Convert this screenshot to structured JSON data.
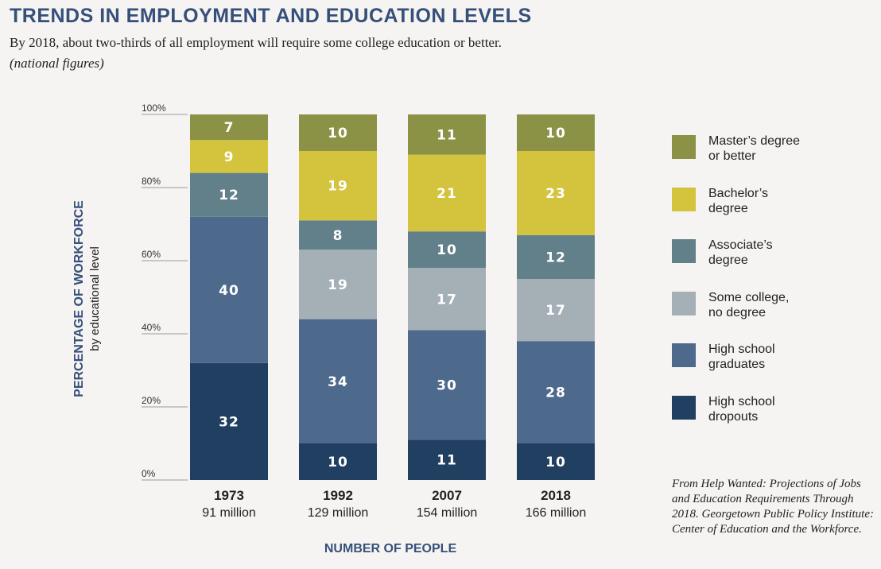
{
  "title": "TRENDS IN EMPLOYMENT AND EDUCATION LEVELS",
  "subtitle": "By 2018, about two-thirds of all employment will require some college education or better.",
  "note": "(national figures)",
  "source": "From Help Wanted: Projections of Jobs and Education Requirements Through 2018. Georgetown Public Policy Institute: Center of Education and the Workforce.",
  "colors": {
    "masters": "#8c9245",
    "bachelors": "#d4c33c",
    "associates": "#62808a",
    "some_college": "#a4b0b6",
    "hs_grad": "#4d6a8d",
    "dropouts": "#213f60",
    "axis_title": "#35507a"
  },
  "chart_data": {
    "type": "bar",
    "stacked": true,
    "title": "TRENDS IN EMPLOYMENT AND EDUCATION LEVELS",
    "ylabel": "PERCENTAGE OF WORKFORCE",
    "ylabel_sub": "by educational level",
    "xlabel": "NUMBER OF PEOPLE",
    "ylim": [
      0,
      100
    ],
    "yticks": [
      "0%",
      "20%",
      "40%",
      "60%",
      "80%",
      "100%"
    ],
    "categories": [
      "1973",
      "1992",
      "2007",
      "2018"
    ],
    "category_sublabels": [
      "91 million",
      "129 million",
      "154 million",
      "166 million"
    ],
    "legend_position": "right",
    "grid": false,
    "series": [
      {
        "key": "dropouts",
        "name": "High school dropouts",
        "legend_lines": [
          "High school",
          "dropouts"
        ],
        "values": [
          32,
          10,
          11,
          10
        ]
      },
      {
        "key": "hs_grad",
        "name": "High school graduates",
        "legend_lines": [
          "High school",
          "graduates"
        ],
        "values": [
          40,
          34,
          30,
          28
        ]
      },
      {
        "key": "some_college",
        "name": "Some college, no degree",
        "legend_lines": [
          "Some college,",
          "no degree"
        ],
        "values": [
          0,
          19,
          17,
          17
        ]
      },
      {
        "key": "associates",
        "name": "Associate’s degree",
        "legend_lines": [
          "Associate’s",
          "degree"
        ],
        "values": [
          12,
          8,
          10,
          12
        ]
      },
      {
        "key": "bachelors",
        "name": "Bachelor’s degree",
        "legend_lines": [
          "Bachelor’s",
          "degree"
        ],
        "values": [
          9,
          19,
          21,
          23
        ]
      },
      {
        "key": "masters",
        "name": "Master’s degree or better",
        "legend_lines": [
          "Master’s degree",
          "or better"
        ],
        "values": [
          7,
          10,
          11,
          10
        ]
      }
    ]
  }
}
